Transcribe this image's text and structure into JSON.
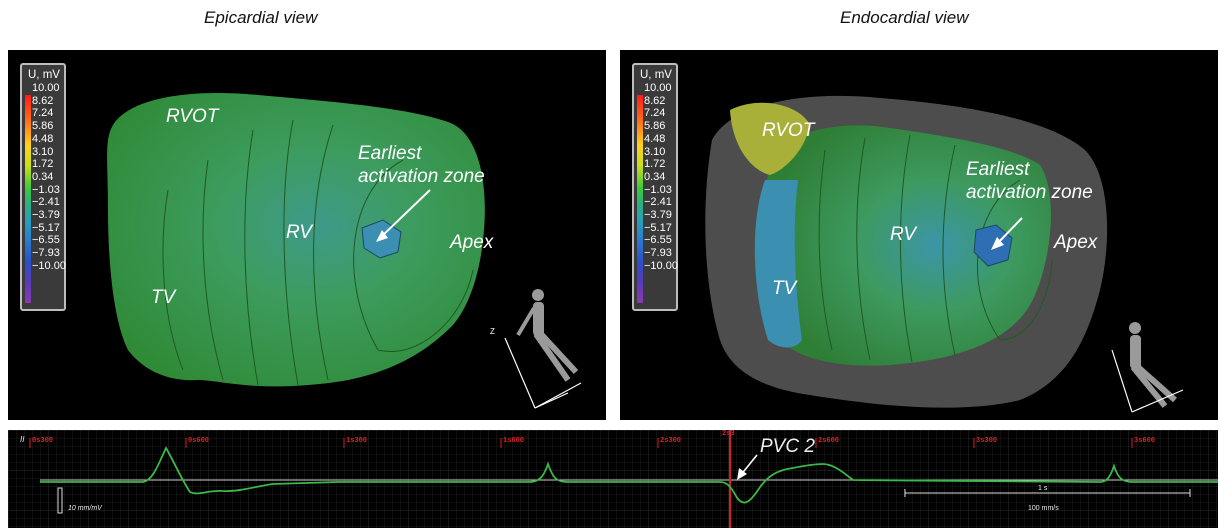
{
  "views": {
    "epicardial": {
      "title": "Epicardial view",
      "labels": {
        "rvot": "RVOT",
        "earliest_line1": "Earliest",
        "earliest_line2": "activation zone",
        "rv": "RV",
        "apex": "Apex",
        "tv": "TV"
      }
    },
    "endocardial": {
      "title": "Endocardial view",
      "labels": {
        "rvot": "RVOT",
        "earliest_line1": "Earliest",
        "earliest_line2": "activation zone",
        "rv": "RV",
        "apex": "Apex",
        "tv": "TV"
      }
    }
  },
  "legend": {
    "title": "U, mV",
    "ticks": [
      "10.00",
      "8.62",
      "7.24",
      "5.86",
      "4.48",
      "3.10",
      "1.72",
      "0.34",
      "−1.03",
      "−2.41",
      "−3.79",
      "−5.17",
      "−6.55",
      "−7.93",
      "−10.00"
    ]
  },
  "colors": {
    "surface_green": "#3aa84a",
    "earliest_blue": "#2a8fb0",
    "ecg_trace": "#3ab94a",
    "marker_red": "#d42020"
  },
  "ecg": {
    "lead": "II",
    "time_labels": [
      "0s300",
      "0s600",
      "1s300",
      "1s600",
      "2s300",
      "2s600",
      "3s300",
      "3s600"
    ],
    "marker_label": "2s3",
    "annotation": "PVC 2",
    "amplitude_scale": "10 mm/mV",
    "time_scale": "1 s",
    "paper_speed": "100 mm/s"
  }
}
